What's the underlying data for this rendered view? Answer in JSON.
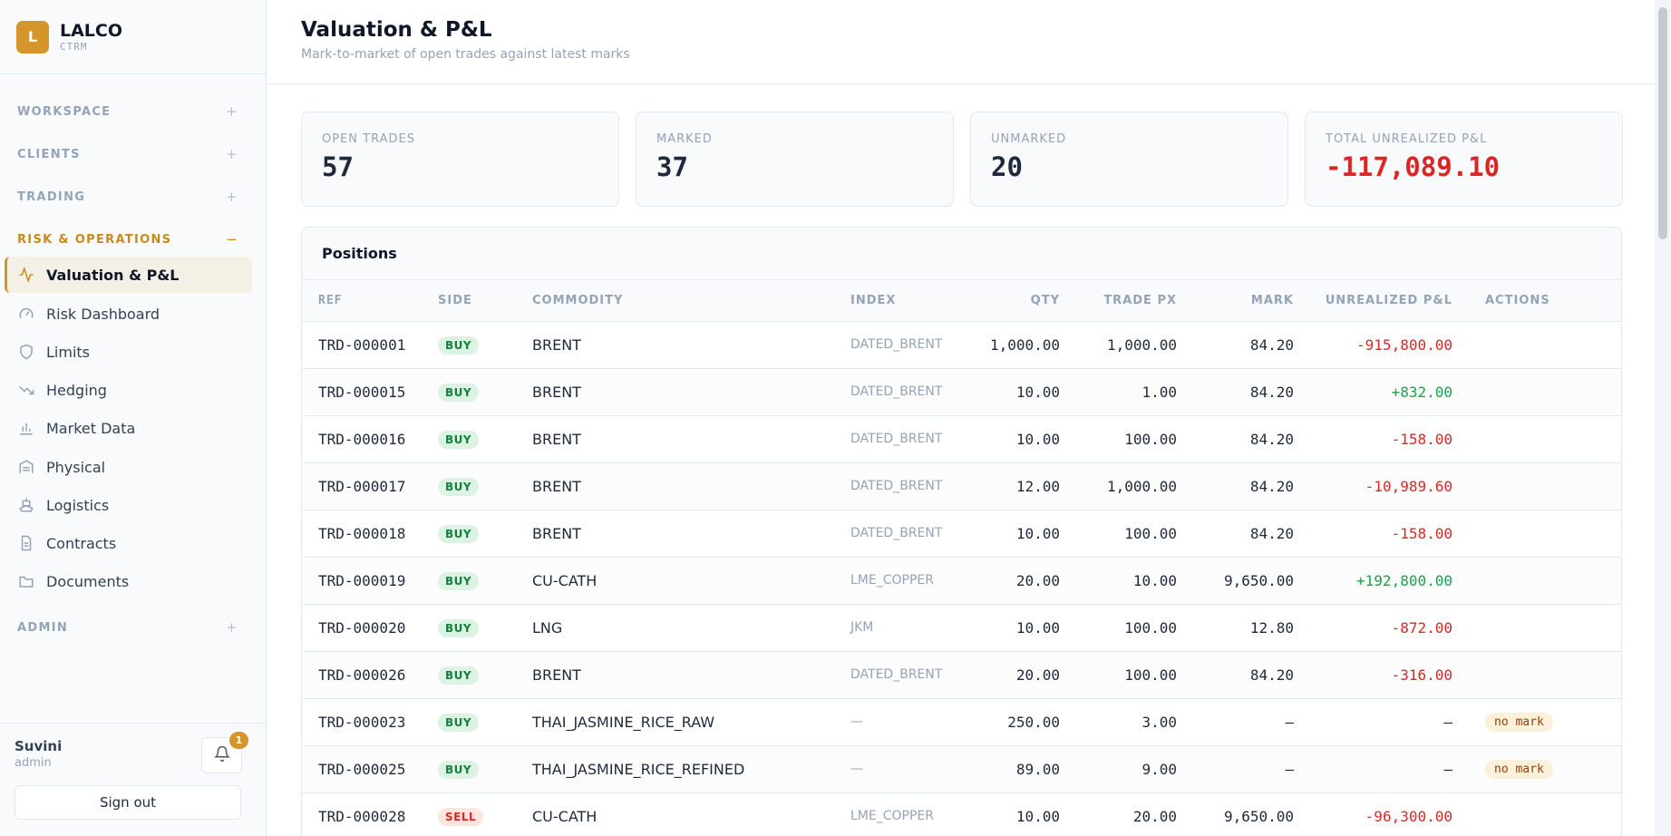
{
  "brand": {
    "logo_letter": "L",
    "name": "LALCO",
    "sub": "CTRM"
  },
  "nav": {
    "sections": [
      {
        "label": "WORKSPACE",
        "toggle": "+"
      },
      {
        "label": "CLIENTS",
        "toggle": "+"
      },
      {
        "label": "TRADING",
        "toggle": "+"
      },
      {
        "label": "RISK & OPERATIONS",
        "toggle": "−"
      },
      {
        "label": "ADMIN",
        "toggle": "+"
      }
    ],
    "items": [
      {
        "label": "Valuation & P&L",
        "icon": "activity-icon",
        "active": true
      },
      {
        "label": "Risk Dashboard",
        "icon": "gauge-icon"
      },
      {
        "label": "Limits",
        "icon": "shield-icon"
      },
      {
        "label": "Hedging",
        "icon": "trending-down-icon"
      },
      {
        "label": "Market Data",
        "icon": "bar-chart-icon"
      },
      {
        "label": "Physical",
        "icon": "warehouse-icon"
      },
      {
        "label": "Logistics",
        "icon": "ship-icon"
      },
      {
        "label": "Contracts",
        "icon": "file-text-icon"
      },
      {
        "label": "Documents",
        "icon": "folder-icon"
      }
    ]
  },
  "user": {
    "name": "Suvini",
    "role": "admin",
    "notifications": "1",
    "signout_label": "Sign out"
  },
  "header": {
    "title": "Valuation & P&L",
    "subtitle": "Mark-to-market of open trades against latest marks"
  },
  "cards": [
    {
      "label": "OPEN TRADES",
      "value": "57"
    },
    {
      "label": "MARKED",
      "value": "37"
    },
    {
      "label": "UNMARKED",
      "value": "20"
    },
    {
      "label": "TOTAL UNREALIZED P&L",
      "value": "-117,089.10"
    }
  ],
  "positions": {
    "title": "Positions",
    "columns": [
      "REF",
      "SIDE",
      "COMMODITY",
      "INDEX",
      "QTY",
      "TRADE PX",
      "MARK",
      "UNREALIZED P&L",
      "ACTIONS"
    ],
    "rows": [
      {
        "ref": "TRD-000001",
        "side": "BUY",
        "commodity": "BRENT",
        "index": "DATED_BRENT",
        "qty": "1,000.00",
        "px": "1,000.00",
        "mark": "84.20",
        "pnl": "-915,800.00",
        "action": ""
      },
      {
        "ref": "TRD-000015",
        "side": "BUY",
        "commodity": "BRENT",
        "index": "DATED_BRENT",
        "qty": "10.00",
        "px": "1.00",
        "mark": "84.20",
        "pnl": "+832.00",
        "action": ""
      },
      {
        "ref": "TRD-000016",
        "side": "BUY",
        "commodity": "BRENT",
        "index": "DATED_BRENT",
        "qty": "10.00",
        "px": "100.00",
        "mark": "84.20",
        "pnl": "-158.00",
        "action": ""
      },
      {
        "ref": "TRD-000017",
        "side": "BUY",
        "commodity": "BRENT",
        "index": "DATED_BRENT",
        "qty": "12.00",
        "px": "1,000.00",
        "mark": "84.20",
        "pnl": "-10,989.60",
        "action": ""
      },
      {
        "ref": "TRD-000018",
        "side": "BUY",
        "commodity": "BRENT",
        "index": "DATED_BRENT",
        "qty": "10.00",
        "px": "100.00",
        "mark": "84.20",
        "pnl": "-158.00",
        "action": ""
      },
      {
        "ref": "TRD-000019",
        "side": "BUY",
        "commodity": "CU-CATH",
        "index": "LME_COPPER",
        "qty": "20.00",
        "px": "10.00",
        "mark": "9,650.00",
        "pnl": "+192,800.00",
        "action": ""
      },
      {
        "ref": "TRD-000020",
        "side": "BUY",
        "commodity": "LNG",
        "index": "JKM",
        "qty": "10.00",
        "px": "100.00",
        "mark": "12.80",
        "pnl": "-872.00",
        "action": ""
      },
      {
        "ref": "TRD-000026",
        "side": "BUY",
        "commodity": "BRENT",
        "index": "DATED_BRENT",
        "qty": "20.00",
        "px": "100.00",
        "mark": "84.20",
        "pnl": "-316.00",
        "action": ""
      },
      {
        "ref": "TRD-000023",
        "side": "BUY",
        "commodity": "THAI_JASMINE_RICE_RAW",
        "index": "—",
        "qty": "250.00",
        "px": "3.00",
        "mark": "—",
        "pnl": "—",
        "action": "no mark"
      },
      {
        "ref": "TRD-000025",
        "side": "BUY",
        "commodity": "THAI_JASMINE_RICE_REFINED",
        "index": "—",
        "qty": "89.00",
        "px": "9.00",
        "mark": "—",
        "pnl": "—",
        "action": "no mark"
      },
      {
        "ref": "TRD-000028",
        "side": "SELL",
        "commodity": "CU-CATH",
        "index": "LME_COPPER",
        "qty": "10.00",
        "px": "20.00",
        "mark": "9,650.00",
        "pnl": "-96,300.00",
        "action": ""
      }
    ]
  },
  "colors": {
    "accent": "#d4962b",
    "negative": "#dc2626",
    "positive": "#16a34a"
  }
}
